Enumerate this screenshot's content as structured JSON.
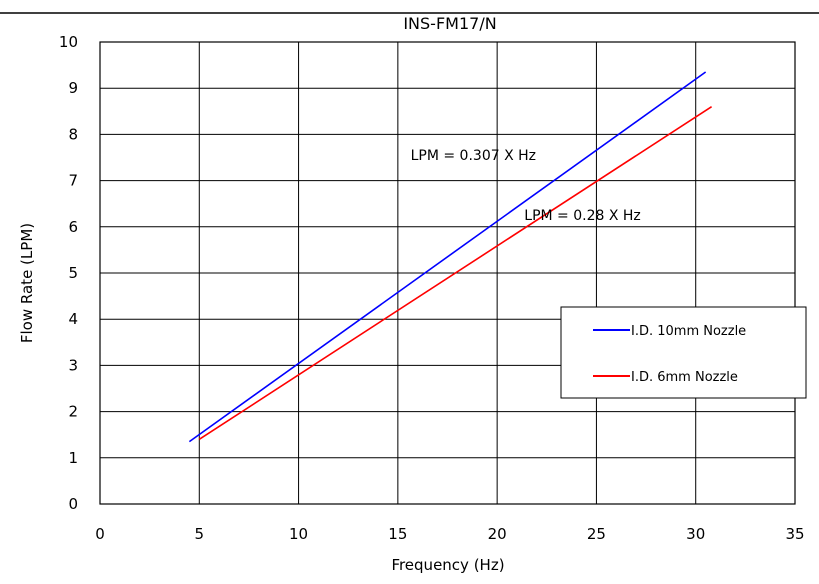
{
  "chart_data": {
    "type": "line",
    "title": "INS-FM17/N",
    "xlabel": "Frequency (Hz)",
    "ylabel": "Flow Rate (LPM)",
    "xlim": [
      0,
      35
    ],
    "ylim": [
      0,
      10
    ],
    "x_ticks": [
      "0",
      "5",
      "10",
      "15",
      "20",
      "25",
      "30",
      "35"
    ],
    "y_ticks": [
      "0",
      "1",
      "2",
      "3",
      "4",
      "5",
      "6",
      "7",
      "8",
      "9",
      "10"
    ],
    "grid": true,
    "legend_position": "right",
    "series": [
      {
        "name": "I.D. 10mm Nozzle",
        "color": "#0000ff",
        "x": [
          4.5,
          30.5
        ],
        "y": [
          1.35,
          9.35
        ]
      },
      {
        "name": "I.D. 6mm Nozzle",
        "color": "#ff0000",
        "x": [
          5.0,
          30.8
        ],
        "y": [
          1.4,
          8.6
        ]
      }
    ],
    "annotations": [
      {
        "text": "LPM = 0.307 X Hz",
        "x": 18.8,
        "y": 7.45
      },
      {
        "text": "LPM = 0.28 X Hz",
        "x": 24.3,
        "y": 6.15
      }
    ]
  }
}
